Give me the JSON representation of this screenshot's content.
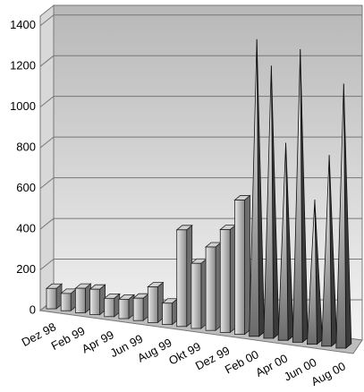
{
  "chart_data": {
    "type": "bar3d",
    "categories": [
      "Dez 98",
      null,
      "Feb 99",
      null,
      "Apr 99",
      null,
      "Jun 99",
      null,
      "Aug 99",
      null,
      "Okt 99",
      null,
      "Dez 99",
      null,
      "Feb 00",
      null,
      "Apr 00",
      null,
      "Jun 00",
      null,
      "Aug 00"
    ],
    "values": [
      100,
      85,
      120,
      125,
      90,
      95,
      110,
      175,
      105,
      475,
      320,
      410,
      505,
      660,
      1460,
      1340,
      970,
      1440,
      710,
      940,
      1300
    ],
    "shapes": [
      "box",
      "box",
      "box",
      "box",
      "box",
      "box",
      "box",
      "box",
      "box",
      "box",
      "box",
      "box",
      "box",
      "box",
      "pyramid",
      "pyramid",
      "pyramid",
      "pyramid",
      "pyramid",
      "pyramid",
      "pyramid"
    ],
    "ylim": [
      0,
      1500
    ],
    "yticks": [
      0,
      200,
      400,
      600,
      800,
      1000,
      1200,
      1400
    ],
    "grid": true,
    "color": "#9a9a9a"
  }
}
